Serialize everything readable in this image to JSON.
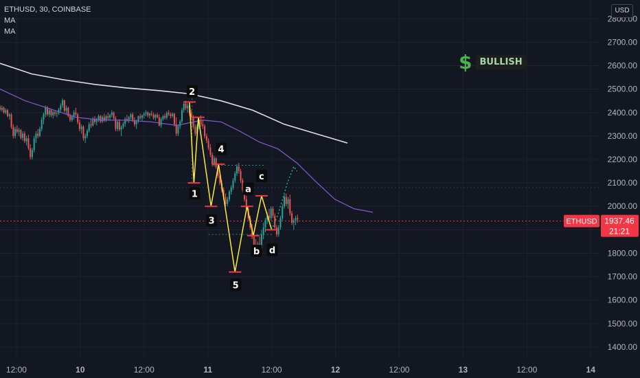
{
  "header": {
    "symbol_line": "ETHUSD, 30, COINBASE",
    "indicators": [
      "MA",
      "MA"
    ],
    "currency": "USD"
  },
  "annotation": {
    "icon": "dollar-sign-icon",
    "label": "BULLISH",
    "label_color": "#a5d6a7",
    "icon_color": "#4caf50"
  },
  "price_tag": {
    "symbol": "ETHUSD",
    "price": "1937.46",
    "countdown": "21:21",
    "color": "#f23645"
  },
  "colors": {
    "background": "#131722",
    "up": "#26a69a",
    "down": "#ef5350",
    "wave_line": "#ffeb3b",
    "ma_slow": "#e0e0e0",
    "ma_fast": "#7e57c2",
    "projection": "#26a69a",
    "grid": "#1e222d"
  },
  "chart_data": {
    "type": "candlestick",
    "title": "ETHUSD, 30, COINBASE",
    "ylim": [
      1350,
      2880
    ],
    "y_ticks": [
      1400,
      1500,
      1600,
      1700,
      1800,
      1900,
      2000,
      2100,
      2200,
      2300,
      2400,
      2500,
      2600,
      2700,
      2800
    ],
    "y_tick_labels": [
      "1400.00",
      "1500.00",
      "1600.00",
      "1700.00",
      "1800.00",
      "1900.00",
      "2000.00",
      "2100.00",
      "2200.00",
      "2300.00",
      "2400.00",
      "2500.00",
      "2600.00",
      "2700.00",
      "2800.00"
    ],
    "x_ticks": [
      {
        "t": -1.74,
        "label": "12:00"
      },
      {
        "t": -0.73,
        "label": "10"
      },
      {
        "t": 0.28,
        "label": "12:00"
      },
      {
        "t": 1.29,
        "label": "11"
      },
      {
        "t": 2.3,
        "label": "12:00"
      },
      {
        "t": 3.31,
        "label": "12"
      },
      {
        "t": 4.32,
        "label": "12:00"
      },
      {
        "t": 5.33,
        "label": "13"
      },
      {
        "t": 6.34,
        "label": "12:00"
      },
      {
        "t": 7.35,
        "label": "14"
      }
    ],
    "x_domain": [
      -2.0,
      7.5
    ],
    "series": [
      {
        "name": "MA",
        "type": "line",
        "points": [
          [
            -2.0,
            2610
          ],
          [
            -1.5,
            2565
          ],
          [
            -1.0,
            2540
          ],
          [
            -0.5,
            2520
          ],
          [
            0,
            2505
          ],
          [
            0.5,
            2494
          ],
          [
            1.0,
            2480
          ],
          [
            1.5,
            2450
          ],
          [
            2.0,
            2410
          ],
          [
            2.5,
            2350
          ],
          [
            3.0,
            2310
          ],
          [
            3.5,
            2270
          ]
        ]
      },
      {
        "name": "MA",
        "type": "line",
        "points": [
          [
            -2.0,
            2500
          ],
          [
            -1.6,
            2450
          ],
          [
            -1.2,
            2415
          ],
          [
            -0.8,
            2380
          ],
          [
            -0.4,
            2368
          ],
          [
            0,
            2367
          ],
          [
            0.4,
            2360
          ],
          [
            0.8,
            2345
          ],
          [
            1.2,
            2368
          ],
          [
            1.5,
            2360
          ],
          [
            1.8,
            2320
          ],
          [
            2.1,
            2275
          ],
          [
            2.4,
            2245
          ],
          [
            2.7,
            2185
          ],
          [
            3.0,
            2105
          ],
          [
            3.3,
            2030
          ],
          [
            3.6,
            1990
          ],
          [
            3.9,
            1975
          ]
        ]
      }
    ],
    "candles": [
      [
        -2.0,
        2425,
        2432,
        2405,
        2412
      ],
      [
        -1.97,
        2412,
        2430,
        2404,
        2420
      ],
      [
        -1.94,
        2420,
        2426,
        2395,
        2400
      ],
      [
        -1.91,
        2400,
        2418,
        2392,
        2410
      ],
      [
        -1.88,
        2410,
        2415,
        2380,
        2385
      ],
      [
        -1.85,
        2385,
        2398,
        2370,
        2392
      ],
      [
        -1.82,
        2392,
        2398,
        2330,
        2338
      ],
      [
        -1.79,
        2338,
        2350,
        2290,
        2300
      ],
      [
        -1.76,
        2300,
        2340,
        2290,
        2330
      ],
      [
        -1.73,
        2330,
        2345,
        2310,
        2318
      ],
      [
        -1.7,
        2318,
        2335,
        2300,
        2325
      ],
      [
        -1.67,
        2325,
        2330,
        2285,
        2292
      ],
      [
        -1.64,
        2292,
        2320,
        2280,
        2310
      ],
      [
        -1.61,
        2310,
        2320,
        2270,
        2278
      ],
      [
        -1.58,
        2278,
        2300,
        2260,
        2290
      ],
      [
        -1.55,
        2290,
        2305,
        2240,
        2248
      ],
      [
        -1.52,
        2248,
        2265,
        2200,
        2210
      ],
      [
        -1.49,
        2210,
        2250,
        2200,
        2240
      ],
      [
        -1.46,
        2240,
        2300,
        2230,
        2290
      ],
      [
        -1.43,
        2290,
        2320,
        2270,
        2310
      ],
      [
        -1.4,
        2310,
        2330,
        2290,
        2300
      ],
      [
        -1.37,
        2300,
        2340,
        2295,
        2330
      ],
      [
        -1.34,
        2330,
        2380,
        2320,
        2370
      ],
      [
        -1.31,
        2370,
        2400,
        2350,
        2392
      ],
      [
        -1.28,
        2392,
        2430,
        2380,
        2420
      ],
      [
        -1.25,
        2420,
        2428,
        2385,
        2392
      ],
      [
        -1.22,
        2392,
        2420,
        2380,
        2410
      ],
      [
        -1.19,
        2410,
        2415,
        2380,
        2388
      ],
      [
        -1.16,
        2388,
        2408,
        2375,
        2402
      ],
      [
        -1.13,
        2402,
        2410,
        2385,
        2395
      ],
      [
        -1.1,
        2395,
        2405,
        2380,
        2398
      ],
      [
        -1.07,
        2398,
        2420,
        2390,
        2412
      ],
      [
        -1.04,
        2412,
        2440,
        2400,
        2430
      ],
      [
        -1.01,
        2430,
        2460,
        2420,
        2452
      ],
      [
        -0.98,
        2452,
        2455,
        2400,
        2408
      ],
      [
        -0.95,
        2408,
        2430,
        2390,
        2420
      ],
      [
        -0.92,
        2420,
        2425,
        2380,
        2385
      ],
      [
        -0.89,
        2385,
        2395,
        2360,
        2368
      ],
      [
        -0.86,
        2368,
        2390,
        2360,
        2382
      ],
      [
        -0.83,
        2382,
        2410,
        2370,
        2400
      ],
      [
        -0.8,
        2400,
        2420,
        2385,
        2392
      ],
      [
        -0.77,
        2392,
        2398,
        2350,
        2358
      ],
      [
        -0.74,
        2358,
        2370,
        2320,
        2330
      ],
      [
        -0.71,
        2330,
        2350,
        2310,
        2340
      ],
      [
        -0.68,
        2340,
        2345,
        2280,
        2290
      ],
      [
        -0.65,
        2290,
        2310,
        2270,
        2300
      ],
      [
        -0.62,
        2300,
        2330,
        2290,
        2322
      ],
      [
        -0.59,
        2322,
        2360,
        2315,
        2350
      ],
      [
        -0.56,
        2350,
        2370,
        2335,
        2345
      ],
      [
        -0.53,
        2345,
        2380,
        2340,
        2372
      ],
      [
        -0.5,
        2372,
        2385,
        2350,
        2360
      ],
      [
        -0.47,
        2360,
        2378,
        2345,
        2370
      ],
      [
        -0.44,
        2370,
        2392,
        2360,
        2385
      ],
      [
        -0.41,
        2385,
        2390,
        2355,
        2362
      ],
      [
        -0.38,
        2362,
        2388,
        2355,
        2380
      ],
      [
        -0.35,
        2380,
        2395,
        2360,
        2366
      ],
      [
        -0.32,
        2366,
        2390,
        2360,
        2384
      ],
      [
        -0.29,
        2384,
        2400,
        2370,
        2378
      ],
      [
        -0.26,
        2378,
        2395,
        2365,
        2390
      ],
      [
        -0.23,
        2390,
        2410,
        2380,
        2400
      ],
      [
        -0.2,
        2400,
        2405,
        2370,
        2375
      ],
      [
        -0.17,
        2375,
        2385,
        2320,
        2330
      ],
      [
        -0.14,
        2330,
        2365,
        2320,
        2360
      ],
      [
        -0.11,
        2360,
        2372,
        2320,
        2328
      ],
      [
        -0.08,
        2328,
        2345,
        2300,
        2338
      ],
      [
        -0.05,
        2338,
        2360,
        2330,
        2352
      ],
      [
        -0.02,
        2352,
        2380,
        2340,
        2372
      ],
      [
        0.01,
        2372,
        2390,
        2360,
        2366
      ],
      [
        0.04,
        2366,
        2385,
        2355,
        2380
      ],
      [
        0.07,
        2380,
        2398,
        2370,
        2392
      ],
      [
        0.1,
        2392,
        2400,
        2360,
        2368
      ],
      [
        0.13,
        2368,
        2380,
        2340,
        2350
      ],
      [
        0.16,
        2350,
        2370,
        2330,
        2362
      ],
      [
        0.19,
        2362,
        2388,
        2355,
        2384
      ],
      [
        0.22,
        2384,
        2395,
        2370,
        2378
      ],
      [
        0.25,
        2378,
        2392,
        2365,
        2388
      ],
      [
        0.28,
        2388,
        2402,
        2375,
        2395
      ],
      [
        0.31,
        2395,
        2410,
        2385,
        2400
      ],
      [
        0.34,
        2400,
        2405,
        2380,
        2388
      ],
      [
        0.37,
        2388,
        2400,
        2375,
        2395
      ],
      [
        0.4,
        2395,
        2408,
        2385,
        2390
      ],
      [
        0.43,
        2390,
        2400,
        2370,
        2378
      ],
      [
        0.46,
        2378,
        2395,
        2365,
        2390
      ],
      [
        0.49,
        2390,
        2398,
        2375,
        2380
      ],
      [
        0.52,
        2380,
        2392,
        2340,
        2345
      ],
      [
        0.55,
        2345,
        2380,
        2335,
        2372
      ],
      [
        0.58,
        2372,
        2390,
        2365,
        2385
      ],
      [
        0.61,
        2385,
        2395,
        2370,
        2378
      ],
      [
        0.64,
        2378,
        2405,
        2370,
        2398
      ],
      [
        0.67,
        2398,
        2410,
        2385,
        2392
      ],
      [
        0.7,
        2392,
        2400,
        2375,
        2385
      ],
      [
        0.73,
        2385,
        2400,
        2378,
        2395
      ],
      [
        0.76,
        2395,
        2398,
        2340,
        2350
      ],
      [
        0.79,
        2350,
        2380,
        2300,
        2310
      ],
      [
        0.82,
        2310,
        2350,
        2300,
        2342
      ],
      [
        0.85,
        2342,
        2370,
        2330,
        2362
      ],
      [
        0.88,
        2362,
        2420,
        2355,
        2410
      ],
      [
        0.91,
        2410,
        2445,
        2400,
        2438
      ],
      [
        0.94,
        2438,
        2450,
        2410,
        2418
      ],
      [
        0.97,
        2418,
        2440,
        2400,
        2430
      ],
      [
        1.0,
        2430,
        2445,
        2385,
        2395
      ],
      [
        1.03,
        2395,
        2410,
        2370,
        2380
      ],
      [
        1.06,
        2380,
        2390,
        2330,
        2340
      ],
      [
        1.09,
        2340,
        2350,
        2300,
        2310
      ],
      [
        1.12,
        2310,
        2350,
        2300,
        2340
      ],
      [
        1.15,
        2340,
        2380,
        2330,
        2370
      ],
      [
        1.18,
        2370,
        2388,
        2340,
        2350
      ],
      [
        1.21,
        2350,
        2370,
        2330,
        2342
      ],
      [
        1.24,
        2342,
        2350,
        2290,
        2300
      ],
      [
        1.27,
        2300,
        2310,
        2270,
        2280
      ],
      [
        1.3,
        2280,
        2290,
        2240,
        2250
      ],
      [
        1.33,
        2250,
        2265,
        2210,
        2220
      ],
      [
        1.36,
        2220,
        2230,
        2170,
        2180
      ],
      [
        1.39,
        2180,
        2215,
        2170,
        2205
      ],
      [
        1.42,
        2205,
        2210,
        2160,
        2168
      ],
      [
        1.45,
        2168,
        2180,
        2120,
        2130
      ],
      [
        1.48,
        2130,
        2140,
        2090,
        2098
      ],
      [
        1.51,
        2098,
        2110,
        2060,
        2070
      ],
      [
        1.54,
        2070,
        2080,
        2030,
        2040
      ],
      [
        1.57,
        2040,
        2055,
        2000,
        2010
      ],
      [
        1.6,
        2010,
        2040,
        2000,
        2030
      ],
      [
        1.63,
        2030,
        2070,
        2020,
        2062
      ],
      [
        1.66,
        2062,
        2090,
        2050,
        2080
      ],
      [
        1.69,
        2080,
        2120,
        2070,
        2110
      ],
      [
        1.72,
        2110,
        2150,
        2100,
        2140
      ],
      [
        1.75,
        2140,
        2180,
        2130,
        2170
      ],
      [
        1.78,
        2170,
        2185,
        2140,
        2150
      ],
      [
        1.81,
        2150,
        2160,
        2100,
        2110
      ],
      [
        1.84,
        2110,
        2120,
        2060,
        2070
      ],
      [
        1.87,
        2070,
        2080,
        2020,
        2030
      ],
      [
        1.9,
        2030,
        2045,
        1980,
        1990
      ],
      [
        1.93,
        1990,
        2000,
        1940,
        1950
      ],
      [
        1.96,
        1950,
        1960,
        1900,
        1910
      ],
      [
        1.99,
        1910,
        1925,
        1860,
        1870
      ],
      [
        2.02,
        1870,
        1880,
        1820,
        1830
      ],
      [
        2.05,
        1830,
        1860,
        1790,
        1800
      ],
      [
        2.08,
        1800,
        1850,
        1790,
        1840
      ],
      [
        2.11,
        1840,
        1870,
        1810,
        1820
      ],
      [
        2.14,
        1820,
        1900,
        1800,
        1880
      ],
      [
        2.17,
        1880,
        1930,
        1860,
        1910
      ],
      [
        2.2,
        1910,
        1950,
        1890,
        1940
      ],
      [
        2.23,
        1940,
        1975,
        1925,
        1960
      ],
      [
        2.26,
        1960,
        1990,
        1940,
        1950
      ],
      [
        2.29,
        1950,
        2000,
        1940,
        1990
      ],
      [
        2.32,
        1990,
        2000,
        1950,
        1960
      ],
      [
        2.35,
        1960,
        1970,
        1900,
        1910
      ],
      [
        2.38,
        1910,
        1920,
        1870,
        1880
      ],
      [
        2.41,
        1880,
        1920,
        1870,
        1910
      ],
      [
        2.44,
        1910,
        1960,
        1900,
        1950
      ],
      [
        2.47,
        1950,
        2010,
        1940,
        2000
      ],
      [
        2.5,
        2000,
        2050,
        1990,
        2040
      ],
      [
        2.53,
        2040,
        2055,
        2000,
        2010
      ],
      [
        2.56,
        2010,
        2040,
        1990,
        2030
      ],
      [
        2.59,
        2030,
        2050,
        1960,
        1970
      ],
      [
        2.62,
        1970,
        1980,
        1920,
        1930
      ],
      [
        2.65,
        1930,
        1950,
        1900,
        1940
      ],
      [
        2.68,
        1940,
        1960,
        1920,
        1950
      ],
      [
        2.71,
        1950,
        1965,
        1930,
        1945
      ]
    ],
    "annotations": {
      "wave_points": [
        [
          1.0,
          2445
        ],
        [
          1.07,
          2100
        ],
        [
          1.14,
          2380
        ],
        [
          1.34,
          2000
        ],
        [
          1.46,
          2180
        ],
        [
          1.72,
          1720
        ],
        [
          1.91,
          2000
        ],
        [
          2.01,
          1875
        ],
        [
          2.14,
          2045
        ],
        [
          2.3,
          1900
        ]
      ],
      "wave_labels": [
        {
          "text": "2",
          "t": 1.04,
          "p": 2490
        },
        {
          "text": "1",
          "t": 1.08,
          "p": 2055
        },
        {
          "text": "4",
          "t": 1.5,
          "p": 2245
        },
        {
          "text": "3",
          "t": 1.35,
          "p": 1940
        },
        {
          "text": "a",
          "t": 1.93,
          "p": 2075
        },
        {
          "text": "c",
          "t": 2.14,
          "p": 2130
        },
        {
          "text": "5",
          "t": 1.73,
          "p": 1665
        },
        {
          "text": "b",
          "t": 2.06,
          "p": 1810
        },
        {
          "text": "d",
          "t": 2.31,
          "p": 1815
        }
      ],
      "projection": [
        [
          2.3,
          1900
        ],
        [
          2.4,
          1965
        ],
        [
          2.55,
          2100
        ],
        [
          2.65,
          2170
        ],
        [
          2.7,
          2150
        ]
      ],
      "hlines": [
        {
          "p": 2080,
          "from": -2.0,
          "to": 7.5,
          "style": "dotted",
          "color": "#363a45"
        },
        {
          "p": 1937.46,
          "from": -2.0,
          "to": 7.5,
          "style": "dotted",
          "color": "#f23645"
        },
        {
          "p": 1880,
          "from": 1.3,
          "to": 2.3,
          "style": "dotted",
          "color": "#2a8c88"
        },
        {
          "p": 2175,
          "from": 1.5,
          "to": 2.18,
          "style": "dotted",
          "color": "#2a8c88"
        }
      ],
      "vline": {
        "t": 1.04,
        "from": 2460,
        "to": 2105
      }
    }
  }
}
